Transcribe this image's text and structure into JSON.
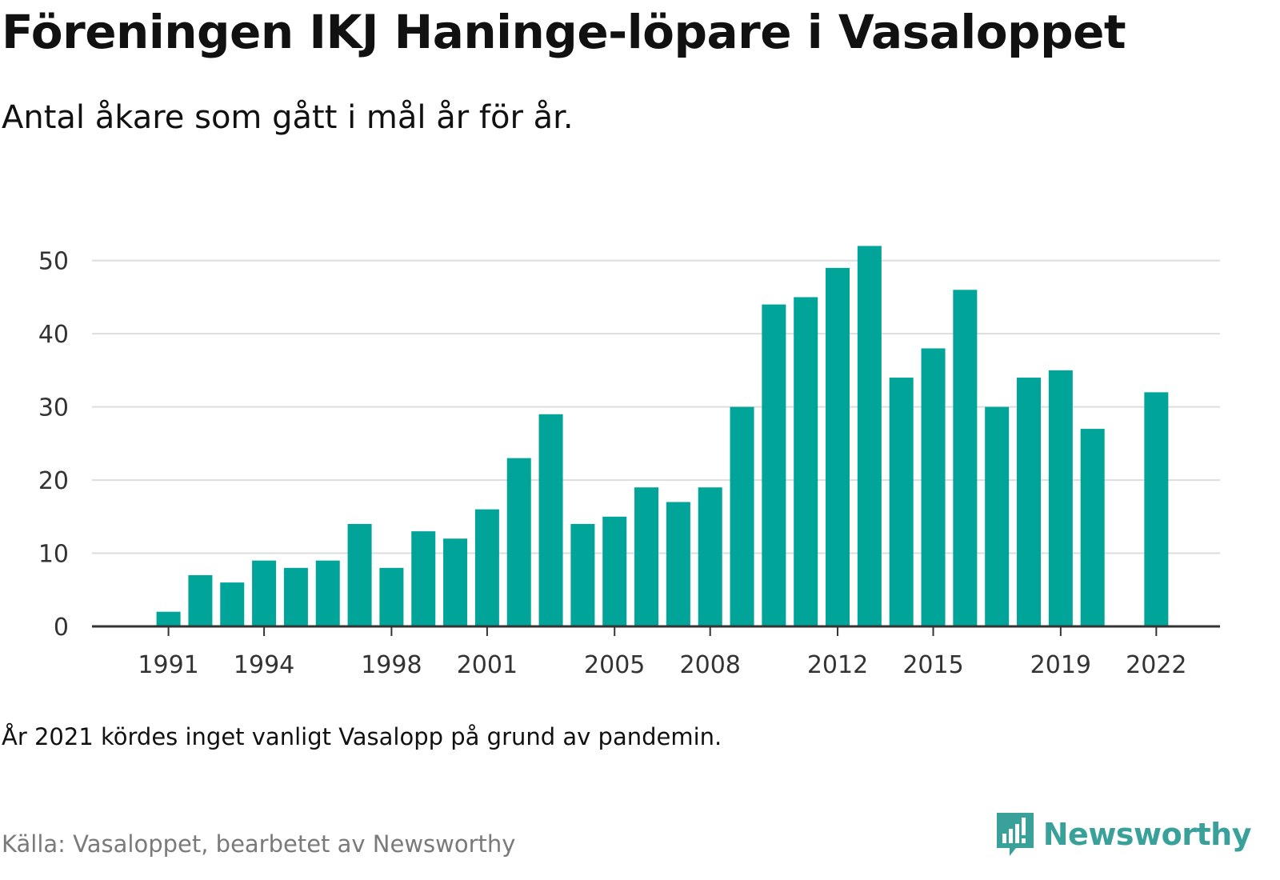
{
  "header": {
    "title": "Föreningen IKJ Haninge-löpare i Vasaloppet",
    "subtitle": "Antal åkare som gått i mål år för år."
  },
  "footer": {
    "note": "År 2021 kördes inget vanligt Vasalopp på grund av pandemin.",
    "source": "Källa: Vasaloppet, bearbetet av Newsworthy",
    "brand": "Newsworthy",
    "brand_icon": "newsworthy-bar-chart-logo-icon"
  },
  "colors": {
    "bar": "#00a499",
    "brand": "#3aa19a",
    "grid": "#dddddd",
    "axis": "#333333"
  },
  "chart_data": {
    "type": "bar",
    "x": [
      1991,
      1992,
      1993,
      1994,
      1995,
      1996,
      1997,
      1998,
      1999,
      2000,
      2001,
      2002,
      2003,
      2004,
      2005,
      2006,
      2007,
      2008,
      2009,
      2010,
      2011,
      2012,
      2013,
      2014,
      2015,
      2016,
      2017,
      2018,
      2019,
      2020,
      2022
    ],
    "values": [
      2,
      7,
      6,
      9,
      8,
      9,
      14,
      8,
      13,
      12,
      16,
      23,
      29,
      14,
      15,
      19,
      17,
      19,
      30,
      44,
      45,
      49,
      52,
      34,
      38,
      46,
      30,
      34,
      35,
      27,
      32
    ],
    "xticks": [
      1991,
      1994,
      1998,
      2001,
      2005,
      2008,
      2012,
      2015,
      2019,
      2022
    ],
    "yticks": [
      0,
      10,
      20,
      30,
      40,
      50
    ],
    "xlim": [
      1988.6,
      2024.0
    ],
    "ylim": [
      0,
      55
    ],
    "grid": "horizontal",
    "title": "Föreningen IKJ Haninge-löpare i Vasaloppet",
    "subtitle": "Antal åkare som gått i mål år för år.",
    "xlabel": "",
    "ylabel": ""
  }
}
